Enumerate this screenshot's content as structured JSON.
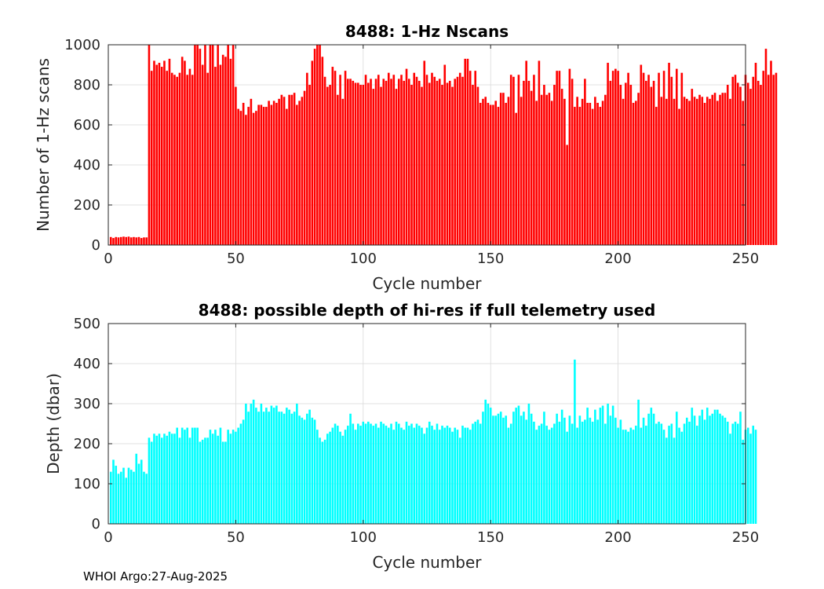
{
  "footer": "WHOI Argo:27-Aug-2025",
  "colors": {
    "top_bars": "#ff0000",
    "bottom_bars": "#00ffff",
    "grid": "#d9d9d9",
    "axis": "#262626"
  },
  "chart_data": [
    {
      "type": "bar",
      "title": "8488: 1-Hz Nscans",
      "xlabel": "Cycle number",
      "ylabel": "Number of 1-Hz scans",
      "xlim": [
        0,
        250
      ],
      "ylim": [
        0,
        1000
      ],
      "xticks": [
        "0",
        "50",
        "100",
        "150",
        "200",
        "250"
      ],
      "yticks": [
        "0",
        "200",
        "400",
        "600",
        "800",
        "1000"
      ],
      "grid": true,
      "legend": "none",
      "x_start": 1,
      "values": [
        40,
        35,
        40,
        38,
        40,
        42,
        40,
        42,
        38,
        40,
        38,
        40,
        35,
        38,
        38,
        1000,
        870,
        920,
        900,
        910,
        890,
        920,
        870,
        930,
        860,
        850,
        840,
        860,
        940,
        920,
        850,
        880,
        850,
        1000,
        1000,
        980,
        900,
        1000,
        860,
        1000,
        1000,
        890,
        1000,
        900,
        950,
        940,
        1000,
        930,
        1000,
        790,
        680,
        670,
        710,
        650,
        690,
        730,
        660,
        670,
        700,
        700,
        690,
        690,
        720,
        700,
        720,
        710,
        730,
        750,
        740,
        680,
        750,
        750,
        760,
        700,
        720,
        740,
        770,
        860,
        800,
        920,
        980,
        1000,
        1000,
        940,
        840,
        790,
        800,
        890,
        870,
        750,
        850,
        730,
        870,
        830,
        830,
        820,
        810,
        810,
        800,
        800,
        850,
        810,
        830,
        780,
        830,
        850,
        790,
        830,
        820,
        860,
        830,
        850,
        780,
        830,
        850,
        820,
        880,
        830,
        800,
        860,
        840,
        820,
        790,
        920,
        850,
        810,
        860,
        840,
        820,
        830,
        800,
        900,
        810,
        820,
        790,
        830,
        840,
        860,
        840,
        930,
        930,
        870,
        800,
        870,
        790,
        710,
        730,
        740,
        710,
        700,
        700,
        720,
        690,
        760,
        760,
        710,
        740,
        850,
        840,
        660,
        850,
        740,
        820,
        920,
        820,
        770,
        850,
        720,
        920,
        750,
        800,
        750,
        760,
        720,
        800,
        870,
        870,
        780,
        730,
        500,
        880,
        830,
        690,
        740,
        690,
        730,
        830,
        710,
        710,
        680,
        740,
        710,
        690,
        720,
        750,
        910,
        820,
        870,
        880,
        870,
        800,
        730,
        810,
        860,
        800,
        710,
        720,
        760,
        900,
        860,
        820,
        850,
        790,
        820,
        690,
        860,
        740,
        870,
        730,
        910,
        840,
        730,
        880,
        680,
        860,
        740,
        730,
        720,
        780,
        740,
        730,
        750,
        740,
        710,
        740,
        730,
        750,
        760,
        720,
        750,
        760,
        760,
        800,
        730,
        840,
        850,
        810,
        790,
        720,
        850,
        810,
        780,
        840,
        910,
        820,
        800,
        870,
        980,
        850,
        920,
        850,
        860
      ]
    },
    {
      "type": "bar",
      "title": "8488: possible depth of hi-res if full telemetry used",
      "xlabel": "Cycle number",
      "ylabel": "Depth (dbar)",
      "xlim": [
        0,
        250
      ],
      "ylim": [
        0,
        500
      ],
      "xticks": [
        "0",
        "50",
        "100",
        "150",
        "200",
        "250"
      ],
      "yticks": [
        "0",
        "100",
        "200",
        "300",
        "400",
        "500"
      ],
      "grid": true,
      "legend": "none",
      "x_start": 1,
      "values": [
        130,
        160,
        145,
        125,
        130,
        140,
        115,
        140,
        135,
        130,
        175,
        150,
        160,
        130,
        125,
        215,
        205,
        225,
        220,
        225,
        215,
        225,
        220,
        230,
        225,
        225,
        240,
        215,
        240,
        235,
        240,
        215,
        240,
        240,
        240,
        205,
        210,
        215,
        215,
        235,
        225,
        235,
        220,
        240,
        205,
        205,
        235,
        225,
        235,
        230,
        240,
        250,
        260,
        300,
        280,
        300,
        310,
        290,
        280,
        300,
        280,
        290,
        280,
        295,
        290,
        295,
        280,
        280,
        275,
        290,
        285,
        275,
        280,
        300,
        270,
        265,
        260,
        275,
        285,
        265,
        260,
        235,
        215,
        205,
        210,
        225,
        230,
        240,
        250,
        245,
        230,
        220,
        235,
        245,
        275,
        250,
        235,
        250,
        245,
        255,
        250,
        255,
        250,
        245,
        250,
        240,
        255,
        250,
        245,
        240,
        250,
        235,
        255,
        250,
        240,
        235,
        255,
        245,
        250,
        240,
        250,
        245,
        240,
        225,
        240,
        255,
        245,
        235,
        250,
        235,
        245,
        240,
        245,
        240,
        230,
        240,
        235,
        215,
        245,
        240,
        240,
        235,
        250,
        255,
        260,
        250,
        280,
        310,
        300,
        290,
        270,
        270,
        275,
        280,
        265,
        270,
        240,
        250,
        280,
        290,
        295,
        270,
        280,
        260,
        300,
        275,
        255,
        235,
        245,
        250,
        280,
        245,
        235,
        240,
        250,
        275,
        255,
        285,
        265,
        230,
        270,
        250,
        410,
        240,
        270,
        255,
        260,
        290,
        265,
        255,
        285,
        260,
        290,
        295,
        250,
        300,
        270,
        295,
        265,
        240,
        260,
        235,
        235,
        230,
        240,
        235,
        245,
        310,
        240,
        265,
        245,
        275,
        290,
        275,
        250,
        255,
        250,
        235,
        215,
        245,
        250,
        215,
        280,
        240,
        230,
        250,
        265,
        255,
        290,
        270,
        245,
        270,
        285,
        260,
        290,
        270,
        275,
        285,
        285,
        275,
        270,
        265,
        255,
        225,
        250,
        255,
        250,
        280,
        210,
        235,
        240,
        225,
        245,
        235
      ]
    }
  ]
}
